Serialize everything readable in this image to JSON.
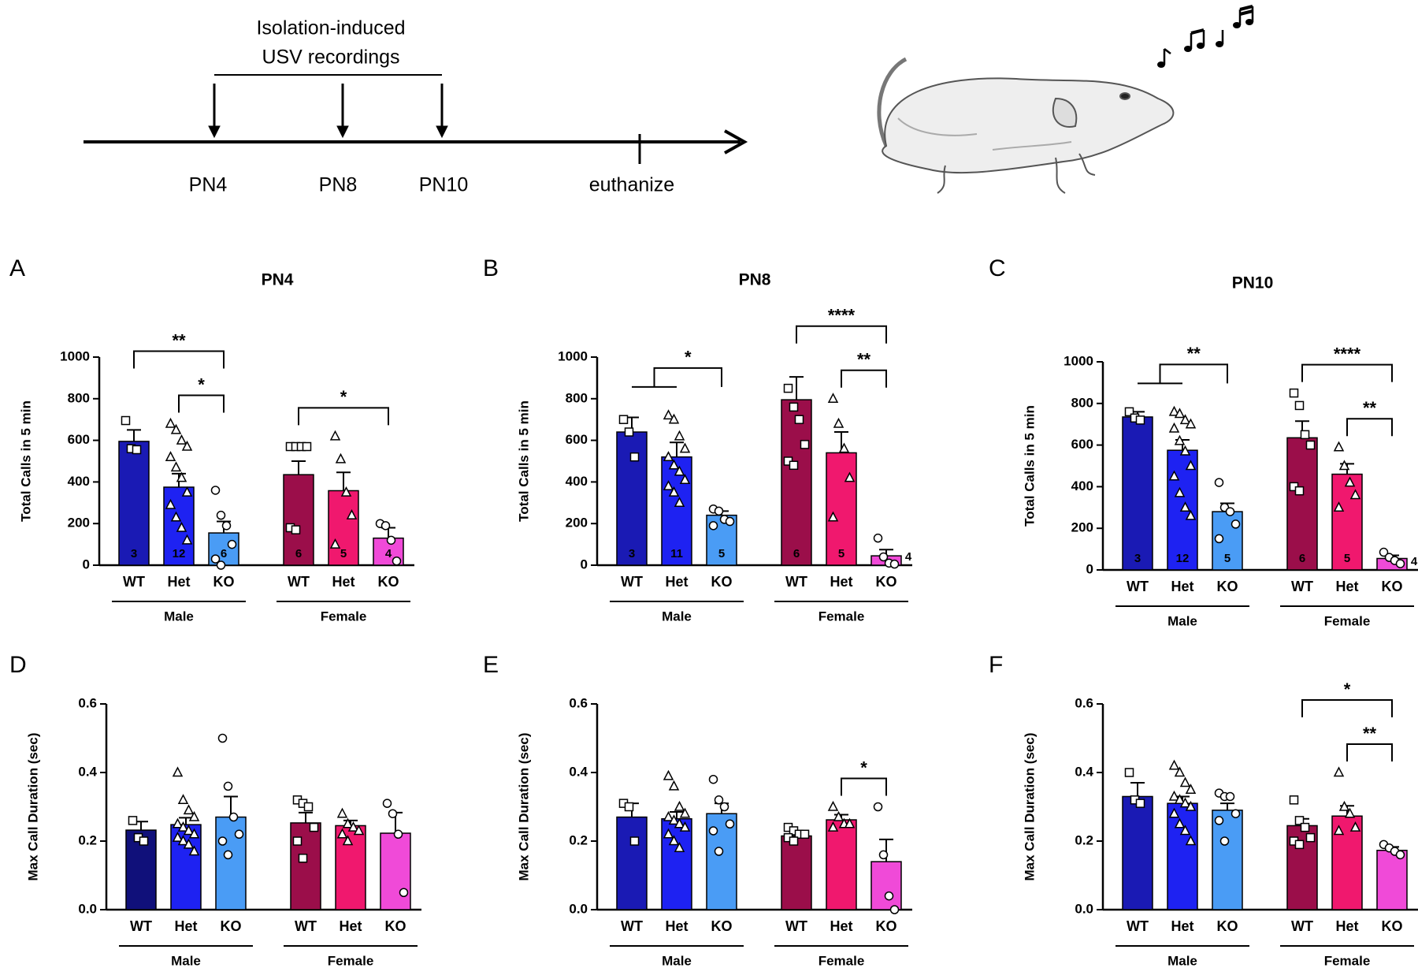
{
  "timeline": {
    "bracket_label": [
      "Isolation-induced",
      "USV recordings"
    ],
    "labels": [
      "PN4",
      "PN8",
      "PN10",
      "euthanize"
    ]
  },
  "chart_data": [
    {
      "type": "bar",
      "panel": "A",
      "title": "PN4",
      "ylabel": "Total Calls in 5 min",
      "categories": [
        "WT",
        "Het",
        "KO",
        "WT",
        "Het",
        "KO"
      ],
      "groups": [
        "Male",
        "Female"
      ],
      "colors": [
        "#1a1ab4",
        "#1e22f2",
        "#4a9cf5",
        "#9b0e4a",
        "#f0186e",
        "#f04ad8"
      ],
      "markers": [
        "square",
        "triangle",
        "circle",
        "square",
        "triangle",
        "circle"
      ],
      "values": [
        595,
        375,
        155,
        435,
        358,
        130
      ],
      "errors": [
        55,
        65,
        55,
        65,
        88,
        50
      ],
      "n_labels": [
        3,
        12,
        6,
        6,
        5,
        4
      ],
      "points": [
        [
          695,
          560,
          555
        ],
        [
          680,
          650,
          600,
          570,
          520,
          470,
          420,
          350,
          290,
          230,
          180,
          120
        ],
        [
          360,
          240,
          190,
          100,
          30,
          0
        ],
        [
          570,
          570,
          570,
          570,
          180,
          170
        ],
        [
          620,
          510,
          350,
          240,
          100
        ],
        [
          200,
          190,
          120,
          20
        ]
      ],
      "ylim": [
        0,
        1000
      ],
      "yticks": [
        0,
        200,
        400,
        600,
        800,
        1000
      ],
      "significance": [
        {
          "label": "**",
          "from": 0,
          "to": 2
        },
        {
          "label": "*",
          "from": 1,
          "to": 2
        },
        {
          "label": "*",
          "from": 3,
          "to": 5
        }
      ]
    },
    {
      "type": "bar",
      "panel": "B",
      "title": "PN8",
      "ylabel": "Total Calls in 5 min",
      "categories": [
        "WT",
        "Het",
        "KO",
        "WT",
        "Het",
        "KO"
      ],
      "groups": [
        "Male",
        "Female"
      ],
      "colors": [
        "#1a1ab4",
        "#1e22f2",
        "#4a9cf5",
        "#9b0e4a",
        "#f0186e",
        "#f04ad8"
      ],
      "markers": [
        "square",
        "triangle",
        "circle",
        "square",
        "triangle",
        "circle"
      ],
      "values": [
        640,
        520,
        240,
        795,
        540,
        45
      ],
      "errors": [
        70,
        70,
        20,
        110,
        100,
        30
      ],
      "n_labels": [
        3,
        11,
        5,
        6,
        5,
        4
      ],
      "points": [
        [
          700,
          640,
          520
        ],
        [
          720,
          700,
          620,
          560,
          520,
          480,
          450,
          410,
          380,
          350,
          300
        ],
        [
          270,
          260,
          220,
          210,
          190
        ],
        [
          850,
          760,
          700,
          580,
          500,
          480
        ],
        [
          800,
          680,
          560,
          420,
          230
        ],
        [
          130,
          40,
          10,
          5
        ]
      ],
      "ylim": [
        0,
        1000
      ],
      "yticks": [
        0,
        200,
        400,
        600,
        800,
        1000
      ],
      "significance": [
        {
          "label": "*",
          "from": [
            0,
            1
          ],
          "to": 2
        },
        {
          "label": "****",
          "from": 3,
          "to": 5
        },
        {
          "label": "**",
          "from": 4,
          "to": 5
        }
      ]
    },
    {
      "type": "bar",
      "panel": "C",
      "title": "PN10",
      "ylabel": "Total Calls in 5 min",
      "categories": [
        "WT",
        "Het",
        "KO",
        "WT",
        "Het",
        "KO"
      ],
      "groups": [
        "Male",
        "Female"
      ],
      "colors": [
        "#1a1ab4",
        "#1e22f2",
        "#4a9cf5",
        "#9b0e4a",
        "#f0186e",
        "#f04ad8"
      ],
      "markers": [
        "square",
        "triangle",
        "circle",
        "square",
        "triangle",
        "circle"
      ],
      "values": [
        735,
        575,
        280,
        635,
        460,
        55
      ],
      "errors": [
        25,
        50,
        40,
        80,
        50,
        15
      ],
      "n_labels": [
        3,
        12,
        5,
        6,
        5,
        4
      ],
      "points": [
        [
          760,
          730,
          720
        ],
        [
          760,
          750,
          720,
          700,
          680,
          620,
          570,
          500,
          450,
          370,
          300,
          260
        ],
        [
          420,
          300,
          280,
          220,
          150
        ],
        [
          850,
          790,
          650,
          600,
          400,
          380
        ],
        [
          590,
          500,
          420,
          360,
          300
        ],
        [
          85,
          60,
          45,
          30
        ]
      ],
      "ylim": [
        0,
        1000
      ],
      "yticks": [
        0,
        200,
        400,
        600,
        800,
        1000
      ],
      "significance": [
        {
          "label": "**",
          "from": [
            0,
            1
          ],
          "to": 2
        },
        {
          "label": "****",
          "from": 3,
          "to": 5
        },
        {
          "label": "**",
          "from": 4,
          "to": 5
        }
      ]
    },
    {
      "type": "bar",
      "panel": "D",
      "ylabel": "Max Call Duration (sec)",
      "categories": [
        "WT",
        "Het",
        "KO",
        "WT",
        "Het",
        "KO"
      ],
      "groups": [
        "Male",
        "Female"
      ],
      "colors": [
        "#10107a",
        "#1e22f2",
        "#4a9cf5",
        "#9b0e4a",
        "#f0186e",
        "#f04ad8"
      ],
      "markers": [
        "square",
        "triangle",
        "circle",
        "square",
        "triangle",
        "circle"
      ],
      "values": [
        0.232,
        0.248,
        0.27,
        0.253,
        0.245,
        0.223
      ],
      "errors": [
        0.025,
        0.02,
        0.06,
        0.03,
        0.015,
        0.06
      ],
      "points": [
        [
          0.26,
          0.21,
          0.2
        ],
        [
          0.4,
          0.32,
          0.29,
          0.27,
          0.25,
          0.24,
          0.23,
          0.22,
          0.21,
          0.2,
          0.19,
          0.17
        ],
        [
          0.5,
          0.36,
          0.27,
          0.22,
          0.2,
          0.16
        ],
        [
          0.32,
          0.31,
          0.3,
          0.24,
          0.2,
          0.15
        ],
        [
          0.28,
          0.25,
          0.24,
          0.23,
          0.22,
          0.2
        ],
        [
          0.31,
          0.28,
          0.22,
          0.05
        ]
      ],
      "ylim": [
        0,
        0.6
      ],
      "yticks": [
        {
          "value": 0,
          "label": "0.0"
        },
        0.2,
        0.4,
        0.6
      ],
      "significance": []
    },
    {
      "type": "bar",
      "panel": "E",
      "ylabel": "Max Call Duration (sec)",
      "categories": [
        "WT",
        "Het",
        "KO",
        "WT",
        "Het",
        "KO"
      ],
      "groups": [
        "Male",
        "Female"
      ],
      "colors": [
        "#1a1ab4",
        "#1e22f2",
        "#4a9cf5",
        "#9b0e4a",
        "#f0186e",
        "#f04ad8"
      ],
      "markers": [
        "square",
        "triangle",
        "circle",
        "square",
        "triangle",
        "circle"
      ],
      "values": [
        0.27,
        0.265,
        0.28,
        0.215,
        0.262,
        0.14
      ],
      "errors": [
        0.04,
        0.02,
        0.03,
        0.01,
        0.015,
        0.065
      ],
      "points": [
        [
          0.31,
          0.3,
          0.2
        ],
        [
          0.39,
          0.36,
          0.3,
          0.28,
          0.27,
          0.26,
          0.25,
          0.24,
          0.22,
          0.2,
          0.18
        ],
        [
          0.38,
          0.32,
          0.3,
          0.25,
          0.23,
          0.17
        ],
        [
          0.24,
          0.23,
          0.22,
          0.22,
          0.21,
          0.2
        ],
        [
          0.3,
          0.27,
          0.25,
          0.25,
          0.24
        ],
        [
          0.3,
          0.16,
          0.04,
          0.0
        ]
      ],
      "ylim": [
        0,
        0.6
      ],
      "yticks": [
        {
          "value": 0,
          "label": "0.0"
        },
        0.2,
        0.4,
        0.6
      ],
      "significance": [
        {
          "label": "*",
          "from": 4,
          "to": 5
        }
      ]
    },
    {
      "type": "bar",
      "panel": "F",
      "ylabel": "Max Call Duration (sec)",
      "categories": [
        "WT",
        "Het",
        "KO",
        "WT",
        "Het",
        "KO"
      ],
      "groups": [
        "Male",
        "Female"
      ],
      "colors": [
        "#1a1ab4",
        "#1e22f2",
        "#4a9cf5",
        "#9b0e4a",
        "#f0186e",
        "#f04ad8"
      ],
      "markers": [
        "square",
        "triangle",
        "circle",
        "square",
        "triangle",
        "circle"
      ],
      "values": [
        0.33,
        0.31,
        0.29,
        0.245,
        0.273,
        0.173
      ],
      "errors": [
        0.04,
        0.02,
        0.02,
        0.02,
        0.03,
        0.01
      ],
      "points": [
        [
          0.4,
          0.32,
          0.31
        ],
        [
          0.42,
          0.4,
          0.37,
          0.35,
          0.33,
          0.32,
          0.31,
          0.3,
          0.28,
          0.25,
          0.23,
          0.2
        ],
        [
          0.34,
          0.33,
          0.33,
          0.28,
          0.26,
          0.2
        ],
        [
          0.32,
          0.26,
          0.24,
          0.21,
          0.2,
          0.19
        ],
        [
          0.4,
          0.3,
          0.28,
          0.24,
          0.23
        ],
        [
          0.19,
          0.18,
          0.17,
          0.16
        ]
      ],
      "ylim": [
        0,
        0.6
      ],
      "yticks": [
        {
          "value": 0,
          "label": "0.0"
        },
        0.2,
        0.4,
        0.6
      ],
      "significance": [
        {
          "label": "*",
          "from": 3,
          "to": 5
        },
        {
          "label": "**",
          "from": 4,
          "to": 5
        }
      ]
    }
  ]
}
